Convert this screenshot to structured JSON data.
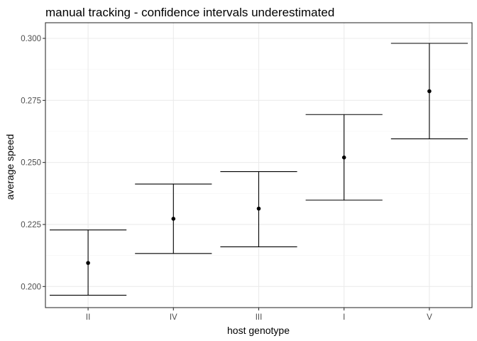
{
  "chart_data": {
    "type": "scatter",
    "title": "manual tracking - confidence intervals underestimated",
    "xlabel": "host genotype",
    "ylabel": "average speed",
    "categories": [
      "II",
      "IV",
      "III",
      "I",
      "V"
    ],
    "series": [
      {
        "values": [
          0.2095,
          0.2273,
          0.2314,
          0.252,
          0.2787
        ],
        "lower": [
          0.1965,
          0.2133,
          0.216,
          0.2348,
          0.2595
        ],
        "upper": [
          0.2228,
          0.2413,
          0.2463,
          0.2693,
          0.298
        ]
      }
    ],
    "y_ticks": [
      "0.200",
      "0.225",
      "0.250",
      "0.275",
      "0.300"
    ],
    "y_tick_values": [
      0.2,
      0.225,
      0.25,
      0.275,
      0.3
    ],
    "ylim": [
      0.1915,
      0.3063
    ],
    "grid": true,
    "legend": "none",
    "point_color": "#000000",
    "errorbar_color": "#000000",
    "gridline_color": "#ebebeb"
  }
}
